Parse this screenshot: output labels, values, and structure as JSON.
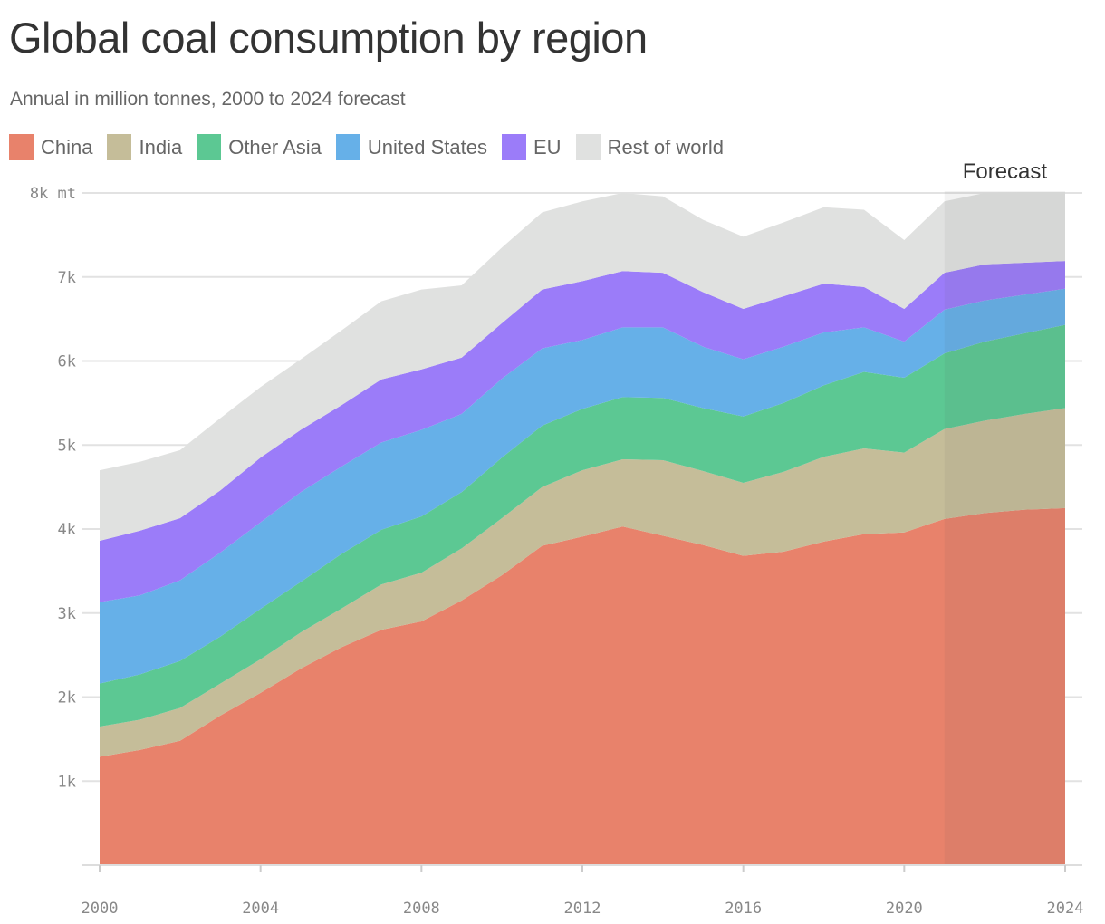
{
  "chart_data": {
    "type": "area",
    "stacked": true,
    "title": "Global coal consumption by region",
    "subtitle": "Annual in million tonnes, 2000 to 2024 forecast",
    "x": [
      2000,
      2001,
      2002,
      2003,
      2004,
      2005,
      2006,
      2007,
      2008,
      2009,
      2010,
      2011,
      2012,
      2013,
      2014,
      2015,
      2016,
      2017,
      2018,
      2019,
      2020,
      2021,
      2022,
      2023,
      2024
    ],
    "series": [
      {
        "name": "China",
        "color": "#e8826b",
        "values": [
          1290,
          1370,
          1480,
          1780,
          2050,
          2340,
          2590,
          2800,
          2900,
          3150,
          3450,
          3800,
          3910,
          4030,
          3920,
          3810,
          3680,
          3730,
          3850,
          3940,
          3960,
          4120,
          4190,
          4230,
          4250
        ]
      },
      {
        "name": "India",
        "color": "#c5bd99",
        "values": [
          360,
          360,
          390,
          380,
          400,
          430,
          460,
          540,
          580,
          620,
          680,
          700,
          790,
          800,
          900,
          880,
          870,
          950,
          1010,
          1020,
          950,
          1070,
          1100,
          1140,
          1190
        ]
      },
      {
        "name": "Other Asia",
        "color": "#5cc893",
        "values": [
          510,
          540,
          560,
          560,
          600,
          600,
          650,
          650,
          670,
          670,
          720,
          730,
          730,
          740,
          740,
          750,
          790,
          820,
          850,
          910,
          890,
          900,
          940,
          960,
          990
        ]
      },
      {
        "name": "United States",
        "color": "#66b0e8",
        "values": [
          970,
          940,
          960,
          1000,
          1030,
          1070,
          1040,
          1040,
          1030,
          930,
          940,
          920,
          820,
          830,
          840,
          730,
          680,
          670,
          630,
          530,
          430,
          520,
          490,
          460,
          430
        ]
      },
      {
        "name": "EU",
        "color": "#9b7cf9",
        "values": [
          730,
          770,
          740,
          740,
          770,
          740,
          730,
          750,
          720,
          670,
          660,
          700,
          700,
          670,
          650,
          650,
          600,
          600,
          580,
          480,
          390,
          440,
          430,
          380,
          330
        ]
      },
      {
        "name": "Rest of world",
        "color": "#e0e1e0",
        "values": [
          840,
          820,
          810,
          860,
          840,
          840,
          890,
          930,
          950,
          860,
          900,
          920,
          950,
          930,
          910,
          860,
          860,
          880,
          910,
          920,
          820,
          850,
          850,
          840,
          820
        ]
      }
    ],
    "ylim": [
      0,
      8000
    ],
    "yticks": [
      {
        "v": 1000,
        "label": "1k"
      },
      {
        "v": 2000,
        "label": "2k"
      },
      {
        "v": 3000,
        "label": "3k"
      },
      {
        "v": 4000,
        "label": "4k"
      },
      {
        "v": 5000,
        "label": "5k"
      },
      {
        "v": 6000,
        "label": "6k"
      },
      {
        "v": 7000,
        "label": "7k"
      },
      {
        "v": 8000,
        "label": "8k mt"
      }
    ],
    "xticks": [
      2000,
      2004,
      2008,
      2012,
      2016,
      2020,
      2024
    ],
    "forecast": {
      "label": "Forecast",
      "start": 2021,
      "end": 2024
    },
    "grid": true,
    "legend_placement": "top-left"
  }
}
